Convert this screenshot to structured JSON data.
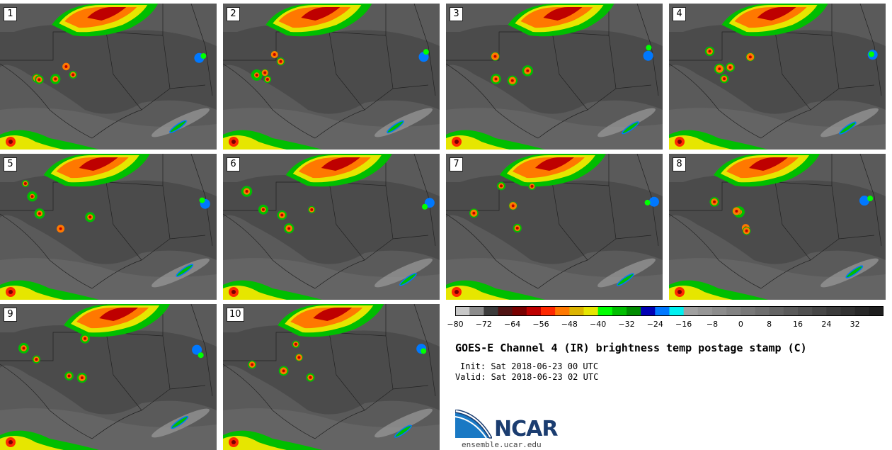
{
  "members": [
    "1",
    "2",
    "3",
    "4",
    "5",
    "6",
    "7",
    "8",
    "9",
    "10"
  ],
  "colorbar": {
    "colors": [
      "#c8c8c8",
      "#8c8c8c",
      "#3c3c3c",
      "#501414",
      "#780000",
      "#be0000",
      "#ff2800",
      "#ff7800",
      "#dcb400",
      "#e6e600",
      "#00ff00",
      "#00be00",
      "#008c00",
      "#0000b4",
      "#0078ff",
      "#00f0f0",
      "#a0a0a0",
      "#969696",
      "#8c8c8c",
      "#828282",
      "#787878",
      "#6e6e6e",
      "#646464",
      "#5a5a5a",
      "#505050",
      "#464646",
      "#3c3c3c",
      "#323232",
      "#282828",
      "#1e1e1e"
    ],
    "ticks": [
      "−80",
      "−72",
      "−64",
      "−56",
      "−48",
      "−40",
      "−32",
      "−24",
      "−16",
      "−8",
      "0",
      "8",
      "16",
      "24",
      "32"
    ]
  },
  "title": "GOES-E Channel 4 (IR) brightness temp postage stamp (C)",
  "init": "Init: Sat 2018-06-23 00 UTC",
  "valid": "Valid: Sat 2018-06-23 02 UTC",
  "logo_text": "NCAR",
  "site": "ensemble.ucar.edu"
}
